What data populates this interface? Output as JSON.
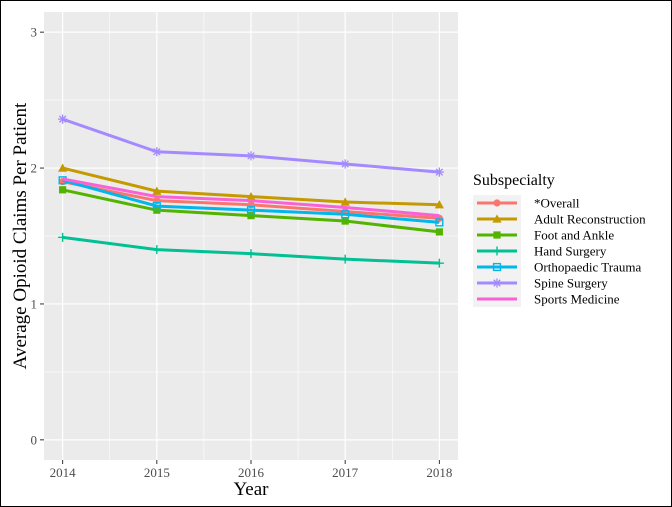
{
  "chart_data": {
    "type": "line",
    "title": "",
    "xlabel": "Year",
    "ylabel": "Average Opioid Claims Per Patient",
    "x": [
      2014,
      2015,
      2016,
      2017,
      2018
    ],
    "x_ticks": [
      "2014",
      "2015",
      "2016",
      "2017",
      "2018"
    ],
    "ylim": [
      0,
      3
    ],
    "y_ticks": [
      "0",
      "1",
      "2",
      "3"
    ],
    "grid": true,
    "legend": {
      "title": "Subspecialty",
      "position": "right"
    },
    "series": [
      {
        "name": "*Overall",
        "color": "#F8766D",
        "marker": "circle",
        "values": [
          1.9,
          1.76,
          1.73,
          1.68,
          1.63
        ]
      },
      {
        "name": "Adult Reconstruction",
        "color": "#C49A00",
        "marker": "triangle",
        "values": [
          2.0,
          1.83,
          1.79,
          1.75,
          1.73
        ]
      },
      {
        "name": "Foot and Ankle",
        "color": "#53B400",
        "marker": "square",
        "values": [
          1.84,
          1.69,
          1.65,
          1.61,
          1.53
        ]
      },
      {
        "name": "Hand Surgery",
        "color": "#00C094",
        "marker": "plus",
        "values": [
          1.49,
          1.4,
          1.37,
          1.33,
          1.3
        ]
      },
      {
        "name": "Orthopaedic Trauma",
        "color": "#00B6EB",
        "marker": "square-open",
        "values": [
          1.91,
          1.72,
          1.69,
          1.66,
          1.6
        ]
      },
      {
        "name": "Spine Surgery",
        "color": "#A58AFF",
        "marker": "asterisk",
        "values": [
          2.36,
          2.12,
          2.09,
          2.03,
          1.97
        ]
      },
      {
        "name": "Sports Medicine",
        "color": "#FB61D7",
        "marker": "none",
        "values": [
          1.92,
          1.79,
          1.76,
          1.71,
          1.65
        ]
      }
    ]
  }
}
